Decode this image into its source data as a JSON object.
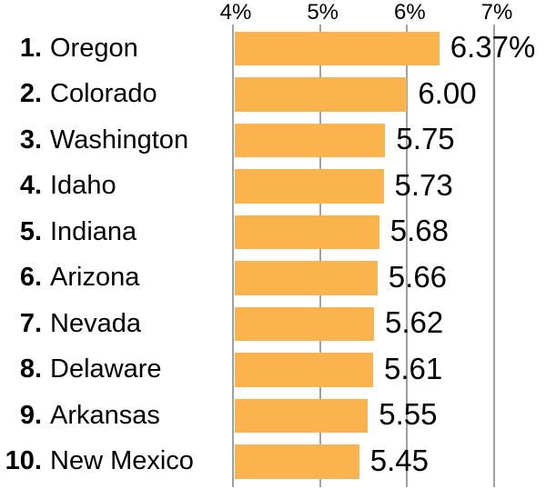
{
  "chart_data": {
    "type": "bar",
    "orientation": "horizontal",
    "title": "",
    "xlabel": "",
    "ylabel": "",
    "xlim": [
      4,
      7
    ],
    "grid": true,
    "axis_position": "top",
    "axis_ticks": [
      "4%",
      "5%",
      "6%",
      "7%"
    ],
    "axis_tick_values": [
      4,
      5,
      6,
      7
    ],
    "categories": [
      "Oregon",
      "Colorado",
      "Washington",
      "Idaho",
      "Indiana",
      "Arizona",
      "Nevada",
      "Delaware",
      "Arkansas",
      "New Mexico"
    ],
    "values": [
      6.37,
      6.0,
      5.75,
      5.73,
      5.68,
      5.66,
      5.62,
      5.61,
      5.55,
      5.45
    ],
    "rows": [
      {
        "rank": "1.",
        "state": "Oregon",
        "value": 6.37,
        "value_label": "6.37%"
      },
      {
        "rank": "2.",
        "state": "Colorado",
        "value": 6.0,
        "value_label": "6.00"
      },
      {
        "rank": "3.",
        "state": "Washington",
        "value": 5.75,
        "value_label": "5.75"
      },
      {
        "rank": "4.",
        "state": "Idaho",
        "value": 5.73,
        "value_label": "5.73"
      },
      {
        "rank": "5.",
        "state": "Indiana",
        "value": 5.68,
        "value_label": "5.68"
      },
      {
        "rank": "6.",
        "state": "Arizona",
        "value": 5.66,
        "value_label": "5.66"
      },
      {
        "rank": "7.",
        "state": "Nevada",
        "value": 5.62,
        "value_label": "5.62"
      },
      {
        "rank": "8.",
        "state": "Delaware",
        "value": 5.61,
        "value_label": "5.61"
      },
      {
        "rank": "9.",
        "state": "Arkansas",
        "value": 5.55,
        "value_label": "5.55"
      },
      {
        "rank": "10.",
        "state": "New Mexico",
        "value": 5.45,
        "value_label": "5.45"
      }
    ],
    "colors": {
      "bar": "#FBB44D",
      "gridline": "#A0A0A0",
      "text": "#000000",
      "background": "#FFFFFF"
    },
    "legend": null
  }
}
